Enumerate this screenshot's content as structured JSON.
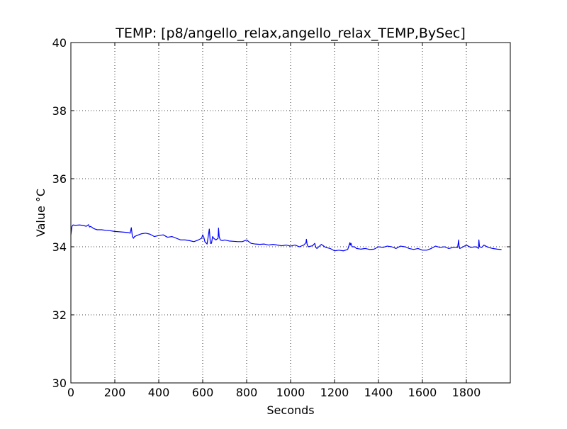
{
  "chart_data": {
    "type": "line",
    "title": "TEMP: [p8/angello_relax,angello_relax_TEMP,BySec]",
    "xlabel": "Seconds",
    "ylabel": "Value °C",
    "xlim": [
      0,
      2000
    ],
    "ylim": [
      30,
      40
    ],
    "xticks": [
      0,
      200,
      400,
      600,
      800,
      1000,
      1200,
      1400,
      1600,
      1800
    ],
    "yticks": [
      30,
      32,
      34,
      36,
      38,
      40
    ],
    "grid": true,
    "grid_style": "dotted",
    "line_color": "#0000ff",
    "series": [
      {
        "x": [
          0,
          5,
          10,
          20,
          40,
          60,
          70,
          80,
          85,
          90,
          100,
          110,
          120,
          140,
          160,
          180,
          200,
          220,
          240,
          260,
          270,
          275,
          280,
          285,
          290,
          300,
          320,
          340,
          360,
          380,
          400,
          420,
          440,
          460,
          480,
          500,
          520,
          540,
          560,
          580,
          595,
          600,
          605,
          610,
          620,
          625,
          630,
          635,
          640,
          645,
          650,
          660,
          670,
          672,
          675,
          680,
          690,
          700,
          720,
          740,
          760,
          780,
          800,
          820,
          840,
          860,
          880,
          900,
          920,
          940,
          960,
          980,
          1000,
          1020,
          1040,
          1060,
          1070,
          1072,
          1075,
          1080,
          1100,
          1110,
          1112,
          1115,
          1120,
          1140,
          1160,
          1180,
          1200,
          1220,
          1240,
          1260,
          1270,
          1272,
          1275,
          1280,
          1290,
          1300,
          1320,
          1340,
          1360,
          1380,
          1400,
          1420,
          1440,
          1460,
          1480,
          1500,
          1520,
          1540,
          1560,
          1580,
          1600,
          1620,
          1640,
          1660,
          1680,
          1700,
          1720,
          1740,
          1760,
          1765,
          1767,
          1770,
          1780,
          1800,
          1820,
          1840,
          1850,
          1855,
          1857,
          1860,
          1870,
          1880,
          1900,
          1920,
          1940,
          1960
        ],
        "y": [
          34.35,
          34.6,
          34.64,
          34.63,
          34.64,
          34.62,
          34.6,
          34.65,
          34.58,
          34.6,
          34.55,
          34.52,
          34.5,
          34.5,
          34.48,
          34.47,
          34.45,
          34.44,
          34.43,
          34.42,
          34.4,
          34.56,
          34.3,
          34.25,
          34.3,
          34.33,
          34.38,
          34.4,
          34.37,
          34.3,
          34.33,
          34.35,
          34.28,
          34.3,
          34.25,
          34.2,
          34.2,
          34.18,
          34.15,
          34.2,
          34.25,
          34.35,
          34.28,
          34.15,
          34.08,
          34.3,
          34.52,
          34.1,
          34.1,
          34.3,
          34.25,
          34.2,
          34.25,
          34.55,
          34.3,
          34.2,
          34.18,
          34.2,
          34.17,
          34.16,
          34.15,
          34.15,
          34.2,
          34.1,
          34.08,
          34.07,
          34.08,
          34.05,
          34.07,
          34.05,
          34.03,
          34.05,
          34.02,
          34.05,
          34.0,
          34.05,
          34.12,
          34.22,
          34.08,
          34.0,
          34.03,
          34.1,
          34.05,
          33.98,
          33.95,
          34.07,
          33.98,
          33.95,
          33.88,
          33.9,
          33.88,
          33.92,
          34.12,
          34.05,
          34.1,
          34.0,
          34.0,
          33.95,
          33.93,
          33.95,
          33.92,
          33.93,
          34.0,
          33.98,
          34.02,
          34.0,
          33.95,
          34.02,
          34.0,
          33.95,
          33.92,
          33.95,
          33.9,
          33.9,
          33.95,
          34.02,
          33.98,
          34.0,
          33.95,
          33.98,
          33.98,
          34.2,
          34.0,
          33.95,
          33.98,
          34.05,
          33.98,
          34.0,
          33.98,
          33.95,
          34.2,
          34.0,
          33.98,
          34.05,
          33.98,
          33.95,
          33.93,
          33.92
        ]
      }
    ]
  }
}
